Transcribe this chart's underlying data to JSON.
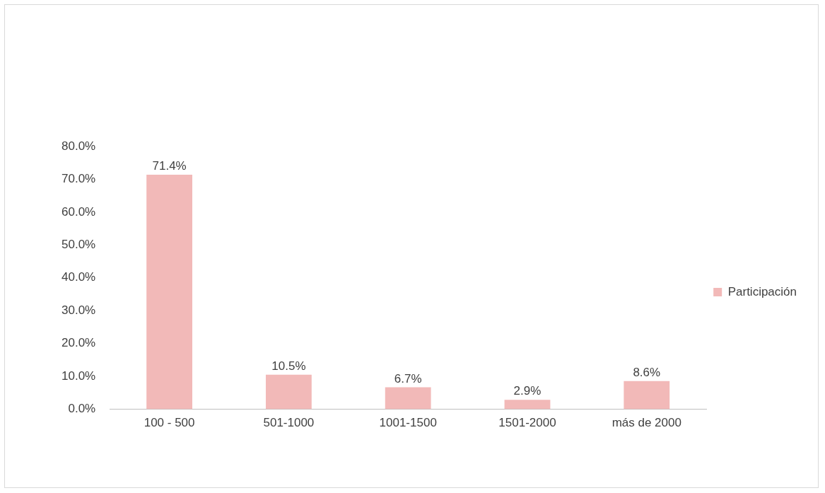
{
  "chart_data": {
    "type": "bar",
    "categories": [
      "100 - 500",
      "501-1000",
      "1001-1500",
      "1501-2000",
      "más de 2000"
    ],
    "series": [
      {
        "name": "Participación",
        "color": "#f2b9b8",
        "values": [
          71.4,
          10.5,
          6.7,
          2.9,
          8.6
        ],
        "value_labels": [
          "71.4%",
          "10.5%",
          "6.7%",
          "2.9%",
          "8.6%"
        ]
      }
    ],
    "ylim": [
      0,
      80
    ],
    "yticks": [
      {
        "value": 0,
        "label": "0.0%"
      },
      {
        "value": 10,
        "label": "10.0%"
      },
      {
        "value": 20,
        "label": "20.0%"
      },
      {
        "value": 30,
        "label": "30.0%"
      },
      {
        "value": 40,
        "label": "40.0%"
      },
      {
        "value": 50,
        "label": "50.0%"
      },
      {
        "value": 60,
        "label": "60.0%"
      },
      {
        "value": 70,
        "label": "70.0%"
      },
      {
        "value": 80,
        "label": "80.0%"
      }
    ],
    "grid": false,
    "legend": "right"
  }
}
